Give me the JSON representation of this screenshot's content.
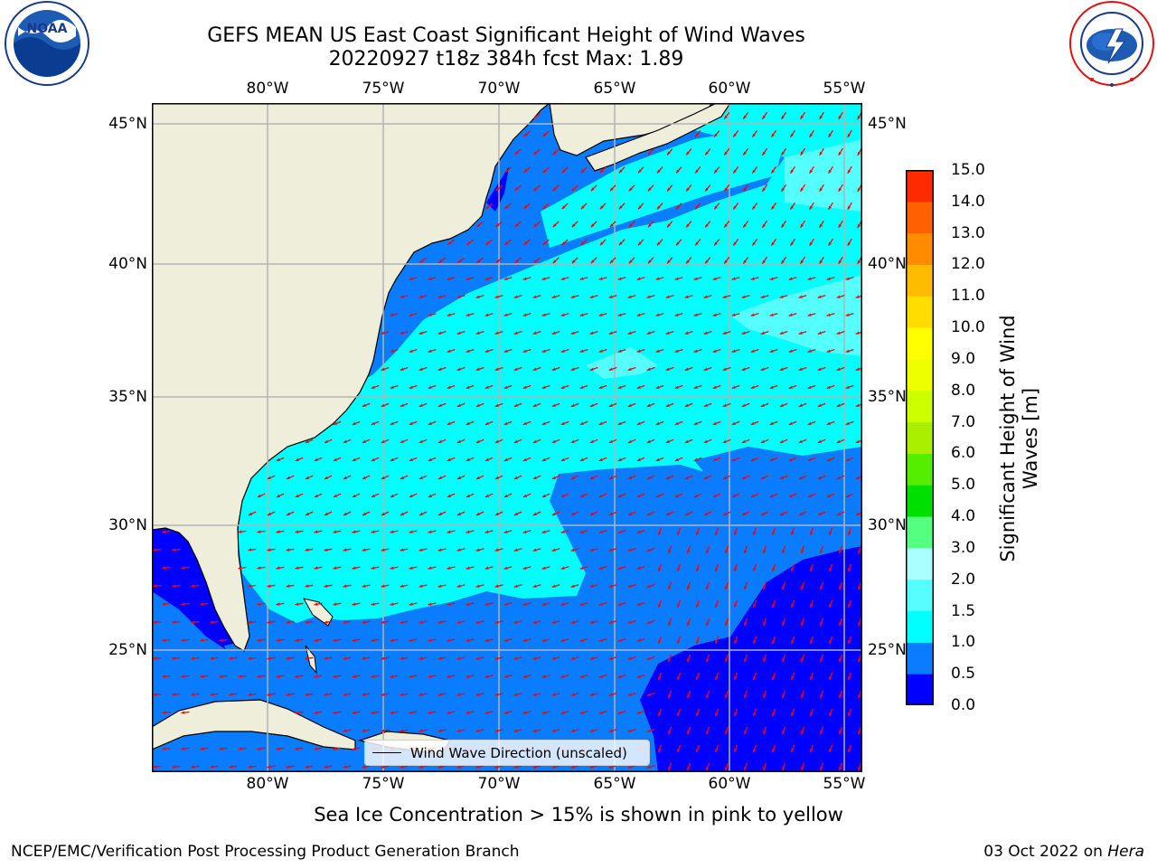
{
  "title": {
    "line1": "GEFS MEAN US East Coast Significant Height of Wind Waves",
    "line2": "20220927 t18z 384h fcst   Max: 1.89"
  },
  "logos": {
    "left": {
      "icon": "noaa-logo",
      "text": "NOAA",
      "ring_text": "NATIONAL OCEANIC AND ATMOSPHERIC ADMINISTRATION · U.S. DEPARTMENT OF COMMERCE"
    },
    "right": {
      "icon": "nws-logo",
      "ring_text": "NATIONAL WEATHER SERVICE"
    }
  },
  "map": {
    "lon_ticks": [
      "80°W",
      "75°W",
      "70°W",
      "65°W",
      "60°W",
      "55°W"
    ],
    "lat_ticks": [
      "45°N",
      "40°N",
      "35°N",
      "30°N",
      "25°N"
    ],
    "lon_range": [
      -85,
      -54.6
    ],
    "lat_range": [
      20.4,
      46.1
    ],
    "land_color": "#efeedb",
    "gridlines": true,
    "grid_color": "#b4b4b4",
    "arrow_color": "#ff0000",
    "arrow_icon": "wind-direction-arrow"
  },
  "legend": {
    "label": "Wind Wave Direction (unscaled)",
    "placement": "lower-center"
  },
  "colorbar": {
    "title": "Significant Height of Wind Waves [m]",
    "tick_labels": [
      "0.0",
      "0.5",
      "1.0",
      "1.5",
      "2.0",
      "3.0",
      "4.0",
      "5.0",
      "6.0",
      "7.0",
      "8.0",
      "9.0",
      "10.0",
      "11.0",
      "12.0",
      "13.0",
      "14.0",
      "15.0"
    ],
    "colors": [
      "#0000ff",
      "#0a7cff",
      "#00ffff",
      "#55ffff",
      "#aaffff",
      "#55ff80",
      "#00e000",
      "#55ee00",
      "#aaee00",
      "#ccff00",
      "#eeff00",
      "#ffff00",
      "#ffdd00",
      "#ffbb00",
      "#ff8c00",
      "#ff6000",
      "#ff2a00",
      "#ff0000"
    ]
  },
  "chart_data": {
    "type": "heatmap",
    "variable": "Significant Height of Wind Waves",
    "units": "m",
    "max_value": 1.89,
    "regions": [
      {
        "name": "nearshore_band",
        "value_range": [
          0.5,
          1.0
        ],
        "color": "#0a7cff"
      },
      {
        "name": "shelf_open_ocean_north_central",
        "value_range": [
          1.0,
          1.5
        ],
        "color": "#00ffff"
      },
      {
        "name": "offshore_patches",
        "value_range": [
          1.5,
          2.0
        ],
        "color": "#55ffff"
      },
      {
        "name": "southeast_ocean",
        "value_range": [
          0.0,
          0.5
        ],
        "color": "#0000ff"
      }
    ]
  },
  "ice_note": "Sea Ice Concentration > 15% is shown in pink to yellow",
  "footer": {
    "left": "NCEP/EMC/Verification Post Processing Product Generation Branch",
    "right_date": "03 Oct 2022 on",
    "right_machine": "Hera"
  }
}
